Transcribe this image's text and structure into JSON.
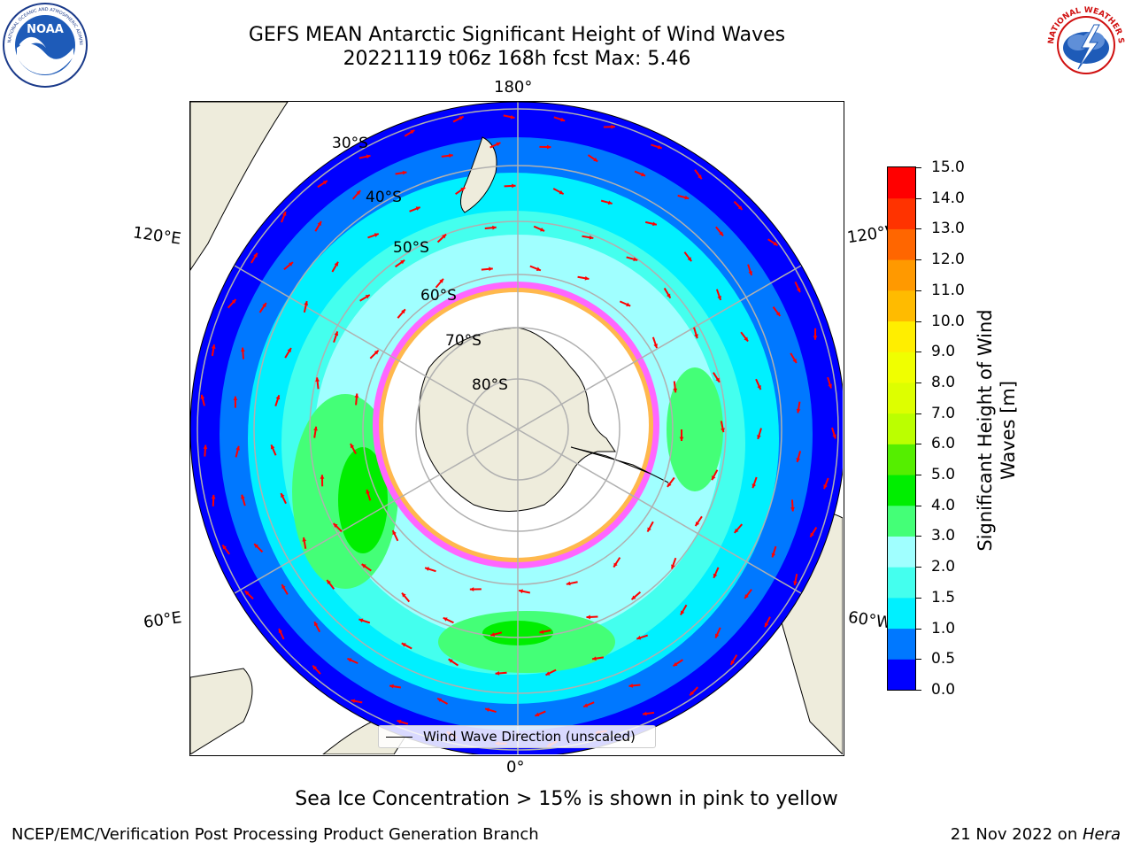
{
  "header": {
    "title_line1": "GEFS MEAN Antarctic Significant Height of Wind Waves",
    "title_line2": "20221119 t06z 168h fcst   Max: 5.46"
  },
  "logos": {
    "noaa": {
      "text": "NOAA",
      "ring_text": "NATIONAL OCEANIC AND ATMOSPHERIC ADMINISTRATION · U.S. DEPARTMENT OF COMMERCE",
      "icon": "noaa-logo-icon"
    },
    "nws": {
      "ring_text": "NATIONAL WEATHER SERVICE",
      "icon": "nws-logo-icon"
    }
  },
  "map": {
    "projection": "south-polar-stereographic",
    "longitude_labels": {
      "top": "180°",
      "bottom": "0°",
      "upper_left": "120°E",
      "upper_right": "120°W",
      "lower_left": "60°E",
      "lower_right": "60°W"
    },
    "latitude_labels": [
      "30°S",
      "40°S",
      "50°S",
      "60°S",
      "70°S",
      "80°S"
    ],
    "legend_label": "Wind Wave Direction (unscaled)",
    "colors": {
      "land": "#eeecdc",
      "sea_ice_region": "#ffffff",
      "graticule": "#b0b0b0",
      "arrow": "#ff0000"
    }
  },
  "colorbar": {
    "label": "Significant Height of Wind Waves [m]",
    "label_line1": "Significant Height of Wind",
    "label_line2": "Waves [m]",
    "ticks": [
      "0.0",
      "0.5",
      "1.0",
      "1.5",
      "2.0",
      "3.0",
      "4.0",
      "5.0",
      "6.0",
      "7.0",
      "8.0",
      "9.0",
      "10.0",
      "11.0",
      "12.0",
      "13.0",
      "14.0",
      "15.0"
    ],
    "levels": [
      {
        "from": 0.0,
        "to": 0.5,
        "color": "#0000ff"
      },
      {
        "from": 0.5,
        "to": 1.0,
        "color": "#0078ff"
      },
      {
        "from": 1.0,
        "to": 1.5,
        "color": "#00f0ff"
      },
      {
        "from": 1.5,
        "to": 2.0,
        "color": "#44ffee"
      },
      {
        "from": 2.0,
        "to": 3.0,
        "color": "#a0ffff"
      },
      {
        "from": 3.0,
        "to": 4.0,
        "color": "#44ff77"
      },
      {
        "from": 4.0,
        "to": 5.0,
        "color": "#00ee00"
      },
      {
        "from": 5.0,
        "to": 6.0,
        "color": "#55ee00"
      },
      {
        "from": 6.0,
        "to": 7.0,
        "color": "#bbff00"
      },
      {
        "from": 7.0,
        "to": 8.0,
        "color": "#ddff00"
      },
      {
        "from": 8.0,
        "to": 9.0,
        "color": "#f0ff00"
      },
      {
        "from": 9.0,
        "to": 10.0,
        "color": "#ffee00"
      },
      {
        "from": 10.0,
        "to": 11.0,
        "color": "#ffbb00"
      },
      {
        "from": 11.0,
        "to": 12.0,
        "color": "#ff9900"
      },
      {
        "from": 12.0,
        "to": 13.0,
        "color": "#ff6600"
      },
      {
        "from": 13.0,
        "to": 14.0,
        "color": "#ff3300"
      },
      {
        "from": 14.0,
        "to": 15.0,
        "color": "#ff0000"
      }
    ]
  },
  "note": "Sea Ice Concentration > 15% is shown in pink to yellow",
  "footer": {
    "left": "NCEP/EMC/Verification Post Processing Product Generation Branch",
    "right_prefix": "21 Nov 2022 on ",
    "right_host": "Hera"
  }
}
